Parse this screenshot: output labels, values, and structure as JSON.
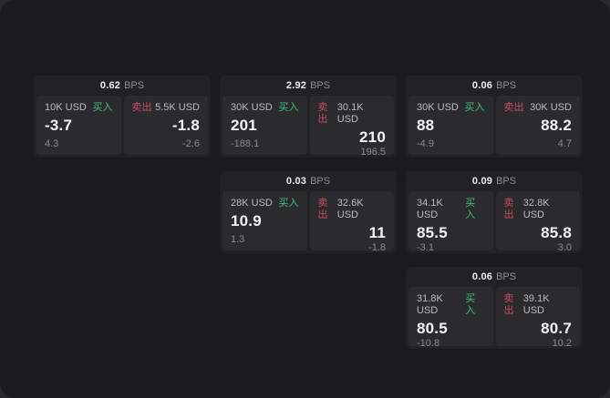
{
  "labels": {
    "buy": "买入",
    "sell": "卖出",
    "bps": "BPS"
  },
  "colors": {
    "background": "#1b1b1d",
    "card": "#222224",
    "panel": "#2b2b2e",
    "buy": "#3ec27e",
    "sell": "#cc4a64"
  },
  "cards": [
    {
      "bps": "0.62",
      "buy": {
        "notional": "10K USD",
        "price": "-3.7",
        "delta": "4.3"
      },
      "sell": {
        "notional": "5.5K USD",
        "price": "-1.8",
        "delta": "-2.6"
      }
    },
    {
      "bps": "2.92",
      "buy": {
        "notional": "30K USD",
        "price": "201",
        "delta": "-188.1"
      },
      "sell": {
        "notional": "30.1K USD",
        "price": "210",
        "delta": "196.5"
      }
    },
    {
      "bps": "0.06",
      "buy": {
        "notional": "30K USD",
        "price": "88",
        "delta": "-4.9"
      },
      "sell": {
        "notional": "30K USD",
        "price": "88.2",
        "delta": "4.7"
      }
    },
    {
      "bps": "0.03",
      "buy": {
        "notional": "28K USD",
        "price": "10.9",
        "delta": "1.3"
      },
      "sell": {
        "notional": "32.6K USD",
        "price": "11",
        "delta": "-1.8"
      }
    },
    {
      "bps": "0.09",
      "buy": {
        "notional": "34.1K USD",
        "price": "85.5",
        "delta": "-3.1"
      },
      "sell": {
        "notional": "32.8K USD",
        "price": "85.8",
        "delta": "3.0"
      }
    },
    {
      "bps": "0.06",
      "buy": {
        "notional": "31.8K USD",
        "price": "80.5",
        "delta": "-10.8"
      },
      "sell": {
        "notional": "39.1K USD",
        "price": "80.7",
        "delta": "10.2"
      }
    }
  ]
}
